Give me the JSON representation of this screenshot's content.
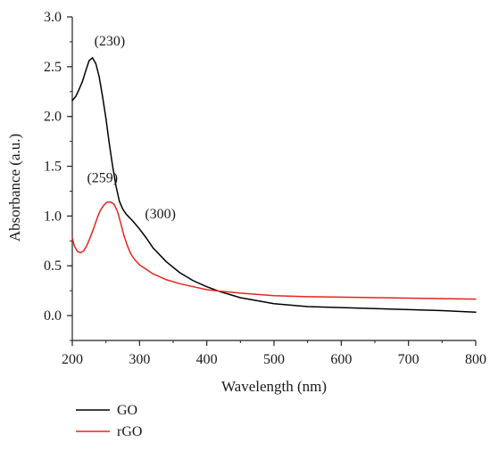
{
  "chart_data": {
    "type": "line",
    "title": "",
    "xlabel": "Wavelength (nm)",
    "ylabel": "Absorbance (a.u.)",
    "xlim": [
      200,
      800
    ],
    "ylim": [
      -0.25,
      3.0
    ],
    "xticks": [
      200,
      300,
      400,
      500,
      600,
      700,
      800
    ],
    "yticks": [
      0.0,
      0.5,
      1.0,
      1.5,
      2.0,
      2.5,
      3.0
    ],
    "xtick_labels": [
      "200",
      "300",
      "400",
      "500",
      "600",
      "700",
      "800"
    ],
    "ytick_labels": [
      "0.0",
      "0.5",
      "1.0",
      "1.5",
      "2.0",
      "2.5",
      "3.0"
    ],
    "grid": false,
    "legend_position": "bottom-left",
    "series": [
      {
        "name": "GO",
        "color": "#000000",
        "points": [
          [
            200,
            2.16
          ],
          [
            205,
            2.2
          ],
          [
            210,
            2.27
          ],
          [
            215,
            2.35
          ],
          [
            220,
            2.46
          ],
          [
            225,
            2.56
          ],
          [
            230,
            2.59
          ],
          [
            235,
            2.53
          ],
          [
            240,
            2.4
          ],
          [
            245,
            2.2
          ],
          [
            250,
            1.98
          ],
          [
            255,
            1.73
          ],
          [
            260,
            1.5
          ],
          [
            265,
            1.3
          ],
          [
            270,
            1.15
          ],
          [
            275,
            1.07
          ],
          [
            280,
            1.02
          ],
          [
            290,
            0.95
          ],
          [
            300,
            0.87
          ],
          [
            310,
            0.78
          ],
          [
            320,
            0.68
          ],
          [
            340,
            0.54
          ],
          [
            360,
            0.43
          ],
          [
            380,
            0.35
          ],
          [
            400,
            0.29
          ],
          [
            420,
            0.24
          ],
          [
            450,
            0.18
          ],
          [
            500,
            0.12
          ],
          [
            550,
            0.09
          ],
          [
            600,
            0.08
          ],
          [
            650,
            0.07
          ],
          [
            700,
            0.06
          ],
          [
            750,
            0.05
          ],
          [
            800,
            0.035
          ]
        ]
      },
      {
        "name": "rGO",
        "color": "#e5251e",
        "points": [
          [
            200,
            0.78
          ],
          [
            203,
            0.7
          ],
          [
            207,
            0.65
          ],
          [
            212,
            0.63
          ],
          [
            217,
            0.65
          ],
          [
            222,
            0.71
          ],
          [
            227,
            0.79
          ],
          [
            232,
            0.88
          ],
          [
            237,
            0.98
          ],
          [
            242,
            1.06
          ],
          [
            247,
            1.11
          ],
          [
            252,
            1.14
          ],
          [
            257,
            1.14
          ],
          [
            262,
            1.12
          ],
          [
            267,
            1.05
          ],
          [
            272,
            0.93
          ],
          [
            277,
            0.8
          ],
          [
            282,
            0.7
          ],
          [
            287,
            0.62
          ],
          [
            293,
            0.56
          ],
          [
            300,
            0.51
          ],
          [
            320,
            0.42
          ],
          [
            340,
            0.36
          ],
          [
            360,
            0.32
          ],
          [
            380,
            0.29
          ],
          [
            400,
            0.26
          ],
          [
            420,
            0.245
          ],
          [
            450,
            0.225
          ],
          [
            500,
            0.2
          ],
          [
            550,
            0.19
          ],
          [
            600,
            0.185
          ],
          [
            700,
            0.175
          ],
          [
            800,
            0.165
          ]
        ]
      }
    ],
    "annotations": [
      {
        "text": "(230)",
        "x": 230,
        "y": 2.59
      },
      {
        "text": "(259)",
        "x": 259,
        "y": 1.14
      },
      {
        "text": "(300)",
        "x": 300,
        "y": 0.87
      }
    ]
  }
}
